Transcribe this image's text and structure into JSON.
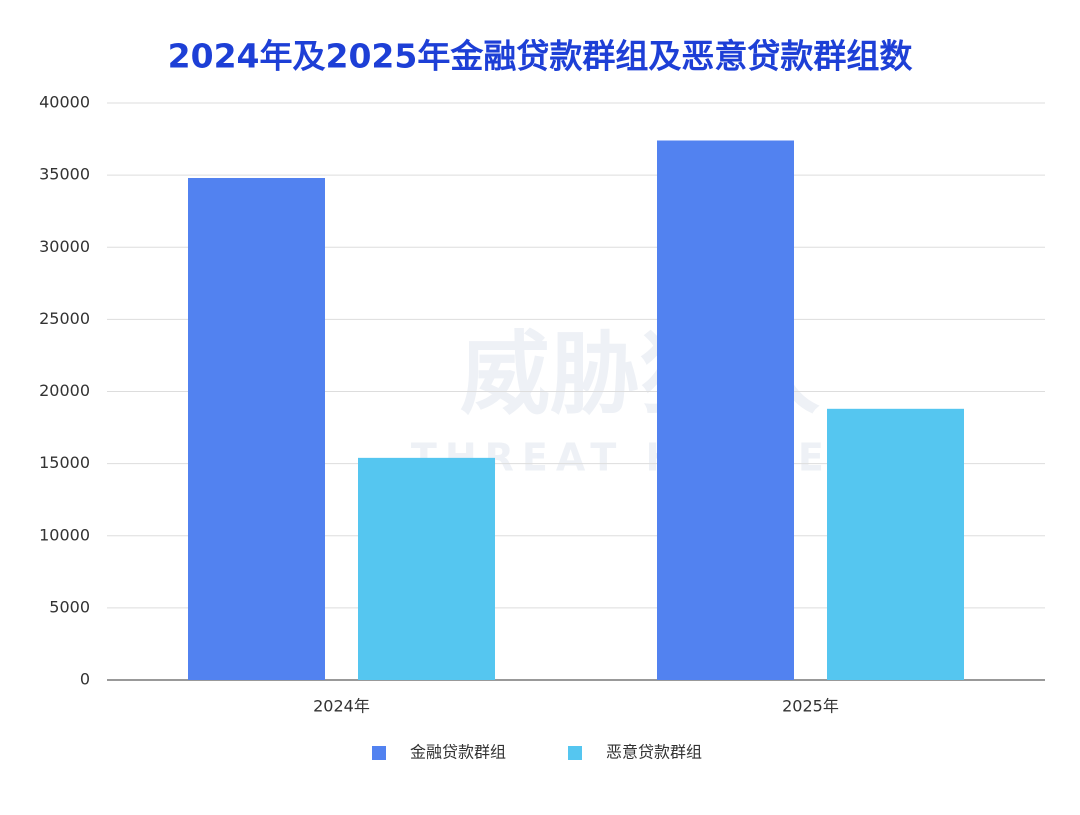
{
  "chart_data": {
    "type": "bar",
    "title": "2024年及2025年金融贷款群组及恶意贷款群组数",
    "watermark": [
      "威胁猎人",
      "THREAT HUNTER"
    ],
    "categories": [
      "2024年",
      "2025年"
    ],
    "series": [
      {
        "name": "金融贷款群组",
        "color": "#5282f0",
        "values": [
          34800,
          37400
        ]
      },
      {
        "name": "恶意贷款群组",
        "color": "#55c6f0",
        "values": [
          15400,
          18800
        ]
      }
    ],
    "ylim": [
      0,
      40000
    ],
    "yticks": [
      0,
      5000,
      10000,
      15000,
      20000,
      25000,
      30000,
      35000,
      40000
    ],
    "grid": true,
    "legend": "bottom"
  }
}
